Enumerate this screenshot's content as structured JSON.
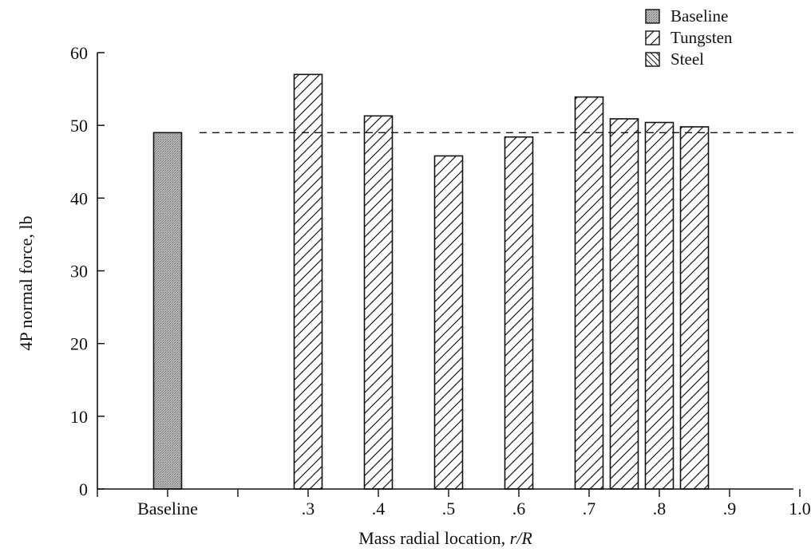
{
  "chart_data": {
    "type": "bar",
    "title": "",
    "xlabel": "Mass radial location, ",
    "xlabel_italic": "r/R",
    "ylabel": "4P normal force, lb",
    "ylim": [
      0,
      60
    ],
    "yticks": [
      "0",
      "10",
      "20",
      "30",
      "40",
      "50",
      "60"
    ],
    "xticks": [
      "Baseline",
      ".3",
      ".4",
      ".5",
      ".6",
      ".7",
      ".8",
      ".9",
      "1.0"
    ],
    "reference_line": {
      "value": 49,
      "style": "dashed"
    },
    "legend": {
      "position": "top-right",
      "entries": [
        {
          "name": "Baseline",
          "pattern": "stipple"
        },
        {
          "name": "Tungsten",
          "pattern": "hatch-forward"
        },
        {
          "name": "Steel",
          "pattern": "hatch-back"
        }
      ]
    },
    "series": [
      {
        "name": "Baseline",
        "points": [
          {
            "x": "Baseline",
            "y": 49
          }
        ]
      },
      {
        "name": "Tungsten",
        "points": [
          {
            "x": 0.3,
            "y": 57
          },
          {
            "x": 0.4,
            "y": 51.3
          },
          {
            "x": 0.5,
            "y": 45.8
          },
          {
            "x": 0.6,
            "y": 48.4
          },
          {
            "x": 0.7,
            "y": 53.9
          },
          {
            "x": 0.75,
            "y": 50.9
          },
          {
            "x": 0.8,
            "y": 50.4
          },
          {
            "x": 0.85,
            "y": 49.8
          }
        ]
      }
    ],
    "colors": {
      "axis": "#111111",
      "baseline_fill": "#a9a9a9",
      "hatch": "#222222",
      "background": "#ffffff"
    }
  }
}
